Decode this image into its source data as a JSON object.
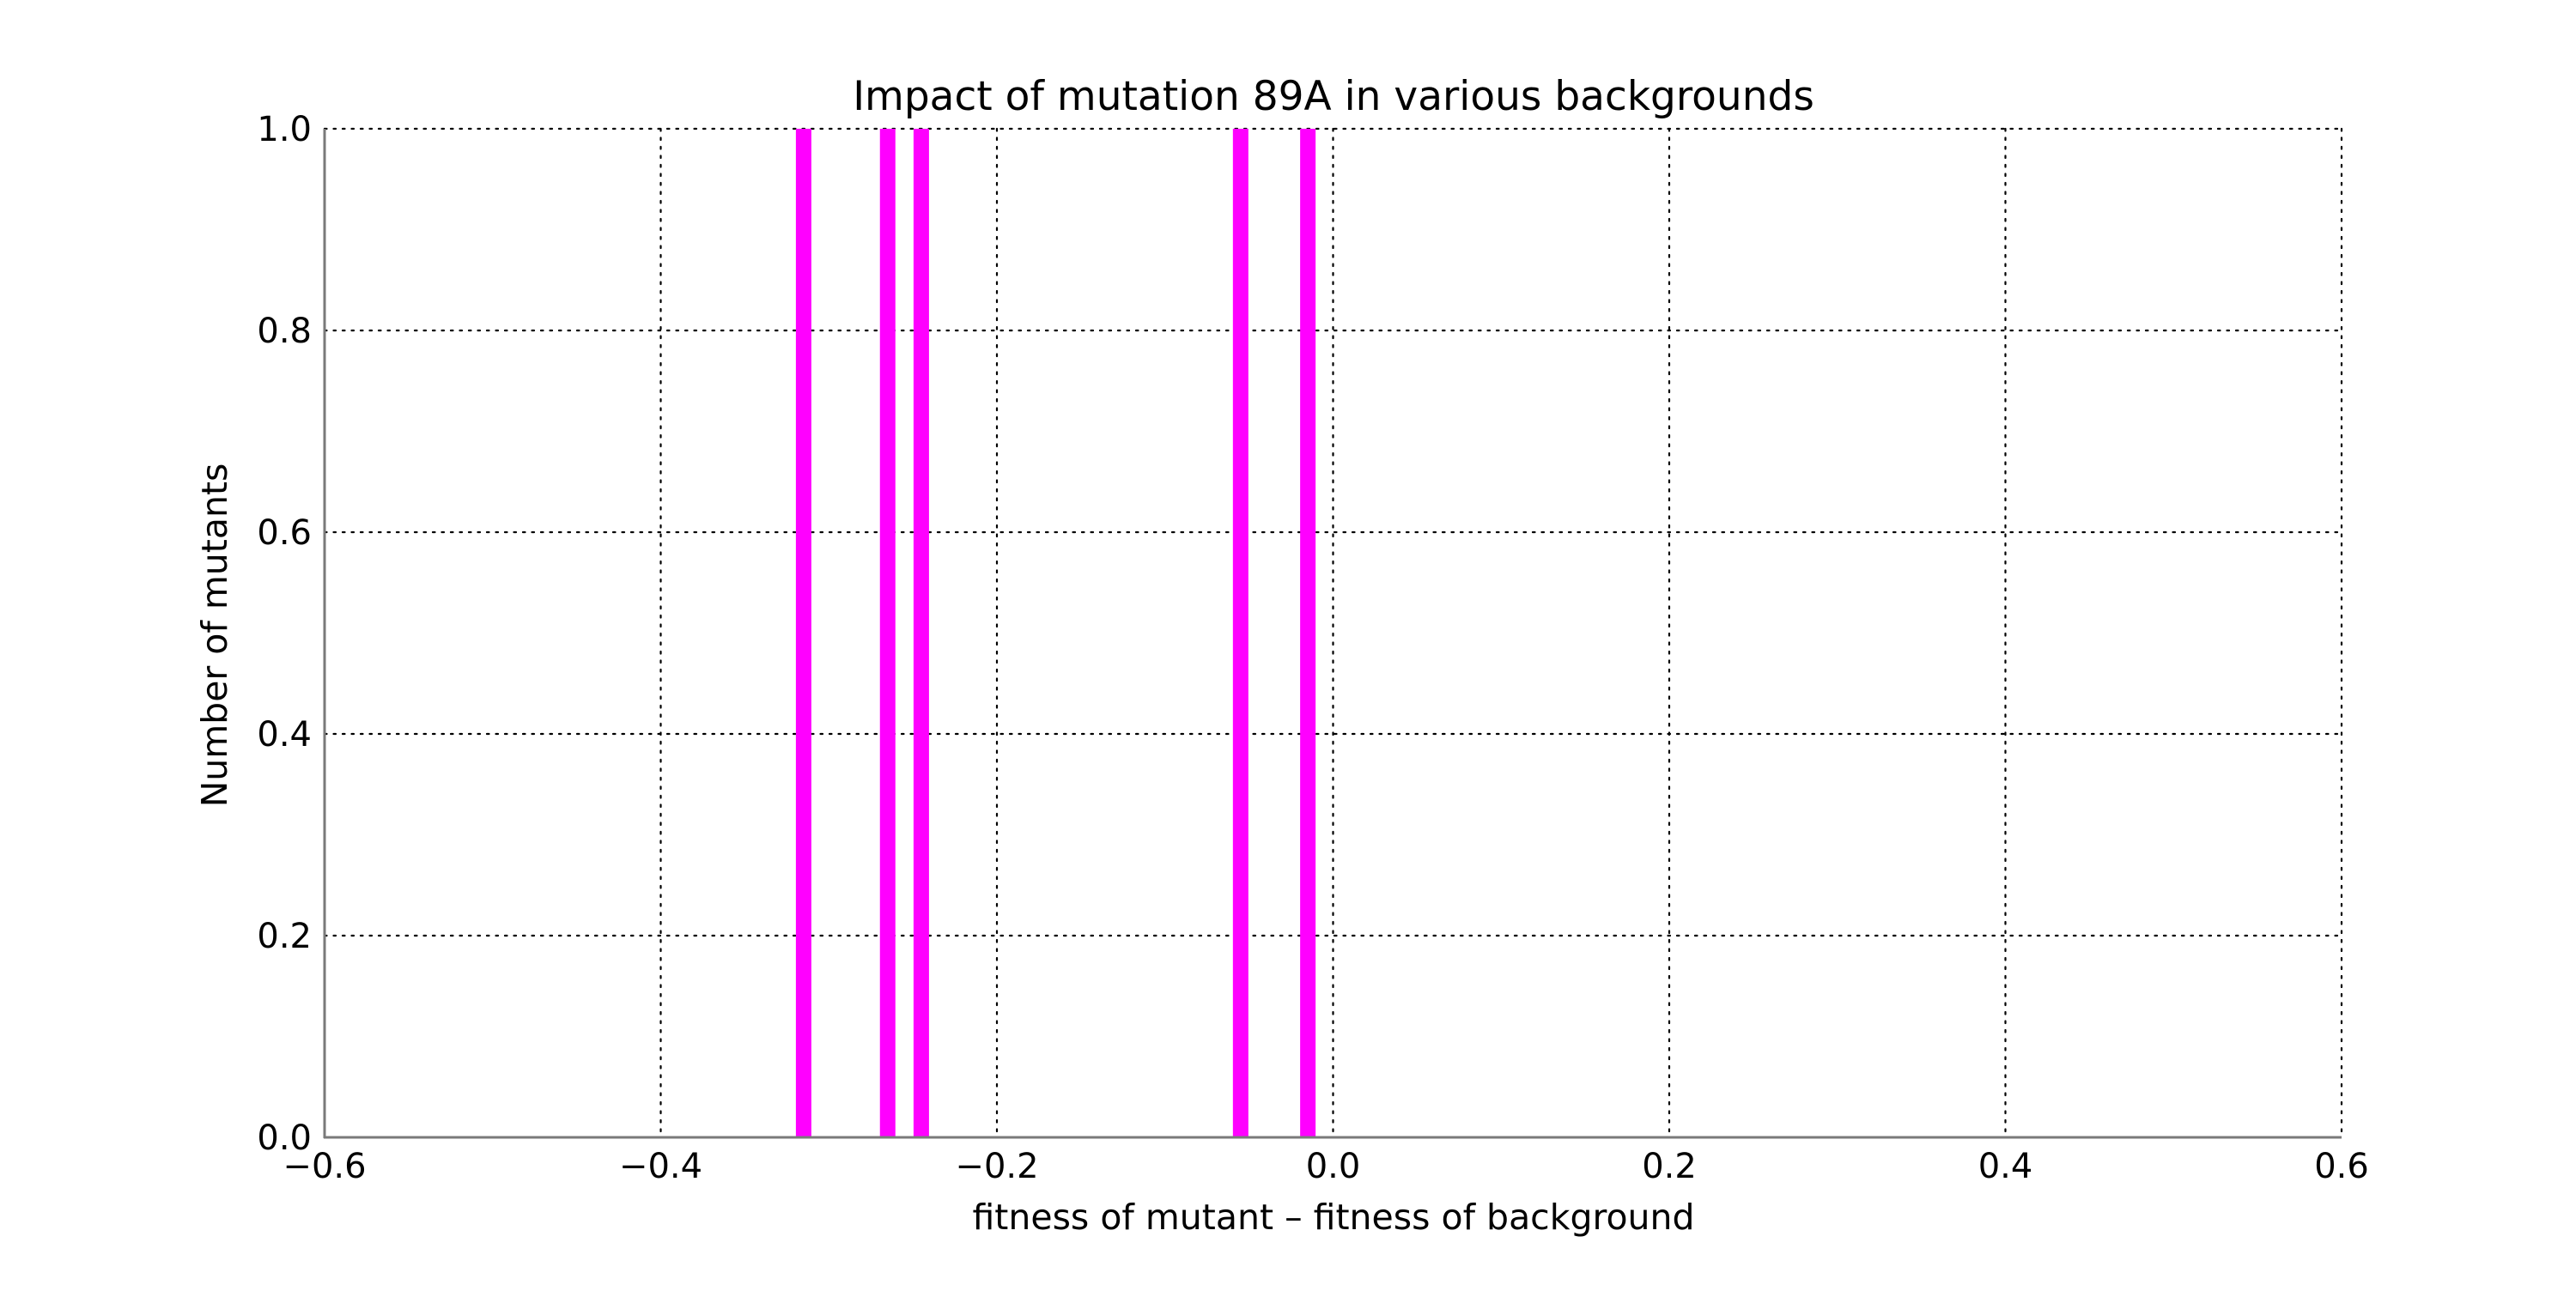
{
  "chart_data": {
    "type": "bar",
    "title": "Impact of mutation 89A in various backgrounds",
    "xlabel": "fitness of mutant  –  fitness of background",
    "ylabel": "Number of mutants",
    "xlim": [
      -0.6,
      0.6
    ],
    "ylim": [
      0.0,
      1.0
    ],
    "x_ticks": [
      -0.6,
      -0.4,
      -0.2,
      0.0,
      0.2,
      0.4,
      0.6
    ],
    "x_tick_labels": [
      "−0.6",
      "−0.4",
      "−0.2",
      "0.0",
      "0.2",
      "0.4",
      "0.6"
    ],
    "y_ticks": [
      0.0,
      0.2,
      0.4,
      0.6,
      0.8,
      1.0
    ],
    "y_tick_labels": [
      "0.0",
      "0.2",
      "0.4",
      "0.6",
      "0.8",
      "1.0"
    ],
    "grid": true,
    "bar_color": "#ff00ff",
    "bins": [
      {
        "x": -0.315,
        "count": 1
      },
      {
        "x": -0.265,
        "count": 1
      },
      {
        "x": -0.245,
        "count": 1
      },
      {
        "x": -0.055,
        "count": 1
      },
      {
        "x": -0.015,
        "count": 1
      }
    ]
  }
}
